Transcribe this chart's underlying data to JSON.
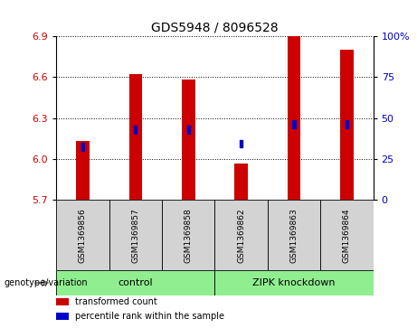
{
  "title": "GDS5948 / 8096528",
  "samples": [
    "GSM1369856",
    "GSM1369857",
    "GSM1369858",
    "GSM1369862",
    "GSM1369863",
    "GSM1369864"
  ],
  "bar_values": [
    6.13,
    6.62,
    6.58,
    5.97,
    6.9,
    6.8
  ],
  "percentile_values": [
    6.09,
    6.215,
    6.215,
    6.115,
    6.255,
    6.255
  ],
  "bar_color": "#cc0000",
  "percentile_color": "#0000cc",
  "baseline": 5.7,
  "ylim_left": [
    5.7,
    6.9
  ],
  "ylim_right": [
    0,
    100
  ],
  "yticks_left": [
    5.7,
    6.0,
    6.3,
    6.6,
    6.9
  ],
  "yticks_right": [
    0,
    25,
    50,
    75,
    100
  ],
  "groups": [
    {
      "label": "control",
      "indices": [
        0,
        1,
        2
      ],
      "color": "#90ee90"
    },
    {
      "label": "ZIPK knockdown",
      "indices": [
        3,
        4,
        5
      ],
      "color": "#90ee90"
    }
  ],
  "group_label_prefix": "genotype/variation",
  "legend_items": [
    {
      "label": "transformed count",
      "color": "#cc0000"
    },
    {
      "label": "percentile rank within the sample",
      "color": "#0000cc"
    }
  ],
  "bar_width": 0.25,
  "square_size": 0.055,
  "bg_color": "#ffffff",
  "sample_box_color": "#d3d3d3",
  "grid_color": "#000000",
  "right_tick_label_color": "#0000cc"
}
